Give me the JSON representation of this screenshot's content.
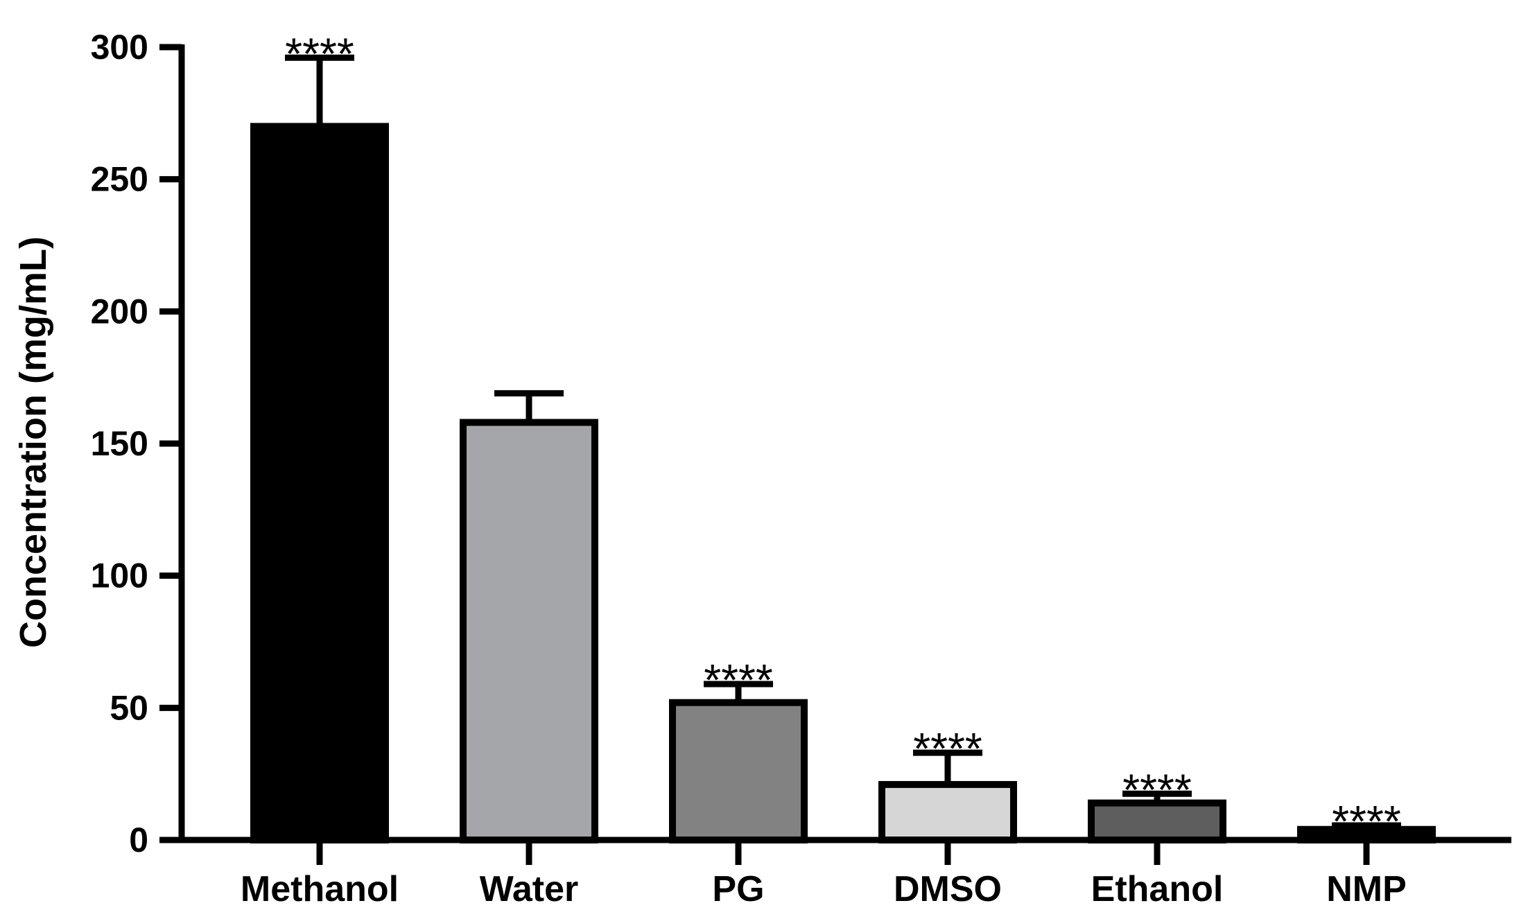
{
  "chart_data": {
    "type": "bar",
    "title": "",
    "xlabel": "",
    "ylabel": "Concentration (mg/mL)",
    "ylim": [
      0,
      300
    ],
    "yticks": [
      0,
      50,
      100,
      150,
      200,
      250,
      300
    ],
    "categories": [
      "Methanol",
      "Water",
      "PG",
      "DMSO",
      "Ethanol",
      "NMP"
    ],
    "values": [
      270,
      158,
      52,
      21,
      14,
      4
    ],
    "errors": [
      26,
      11,
      7,
      12,
      3.5,
      1.5
    ],
    "significance": [
      "****",
      "",
      "****",
      "****",
      "****",
      "****"
    ],
    "bar_colors": [
      "#000000",
      "#a5a6a9",
      "#828282",
      "#d6d6d6",
      "#5e5e5e",
      "#000000"
    ],
    "legend": "none",
    "grid": false
  }
}
